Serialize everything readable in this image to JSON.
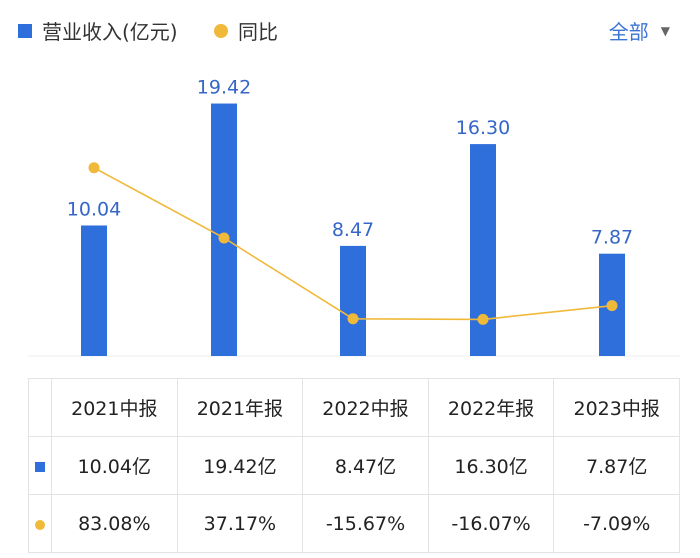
{
  "legend": {
    "bar_label": "营业收入(亿元)",
    "line_label": "同比",
    "bar_color": "#2f6fdc",
    "line_color": "#f0b93a"
  },
  "filter": {
    "label": "全部",
    "icon": "chevron-down-icon"
  },
  "chart_data": {
    "type": "bar",
    "categories": [
      "2021中报",
      "2021年报",
      "2022中报",
      "2022年报",
      "2023中报"
    ],
    "series": [
      {
        "name": "营业收入(亿元)",
        "type": "bar",
        "values": [
          10.04,
          19.42,
          8.47,
          16.3,
          7.87
        ],
        "labels": [
          "10.04",
          "19.42",
          "8.47",
          "16.30",
          "7.87"
        ]
      },
      {
        "name": "同比",
        "type": "line",
        "values": [
          83.08,
          37.17,
          -15.67,
          -16.07,
          -7.09
        ]
      }
    ],
    "ylim": [
      0,
      20
    ],
    "y2lim": [
      -40,
      130
    ],
    "title": "",
    "xlabel": "",
    "ylabel": ""
  },
  "table": {
    "headers": [
      "2021中报",
      "2021年报",
      "2022中报",
      "2022年报",
      "2023中报"
    ],
    "revenue": [
      "10.04亿",
      "19.42亿",
      "8.47亿",
      "16.30亿",
      "7.87亿"
    ],
    "yoy": [
      "83.08%",
      "37.17%",
      "-15.67%",
      "-16.07%",
      "-7.09%"
    ]
  },
  "colors": {
    "positive": "#d83b3b",
    "negative": "#2e9e57"
  }
}
